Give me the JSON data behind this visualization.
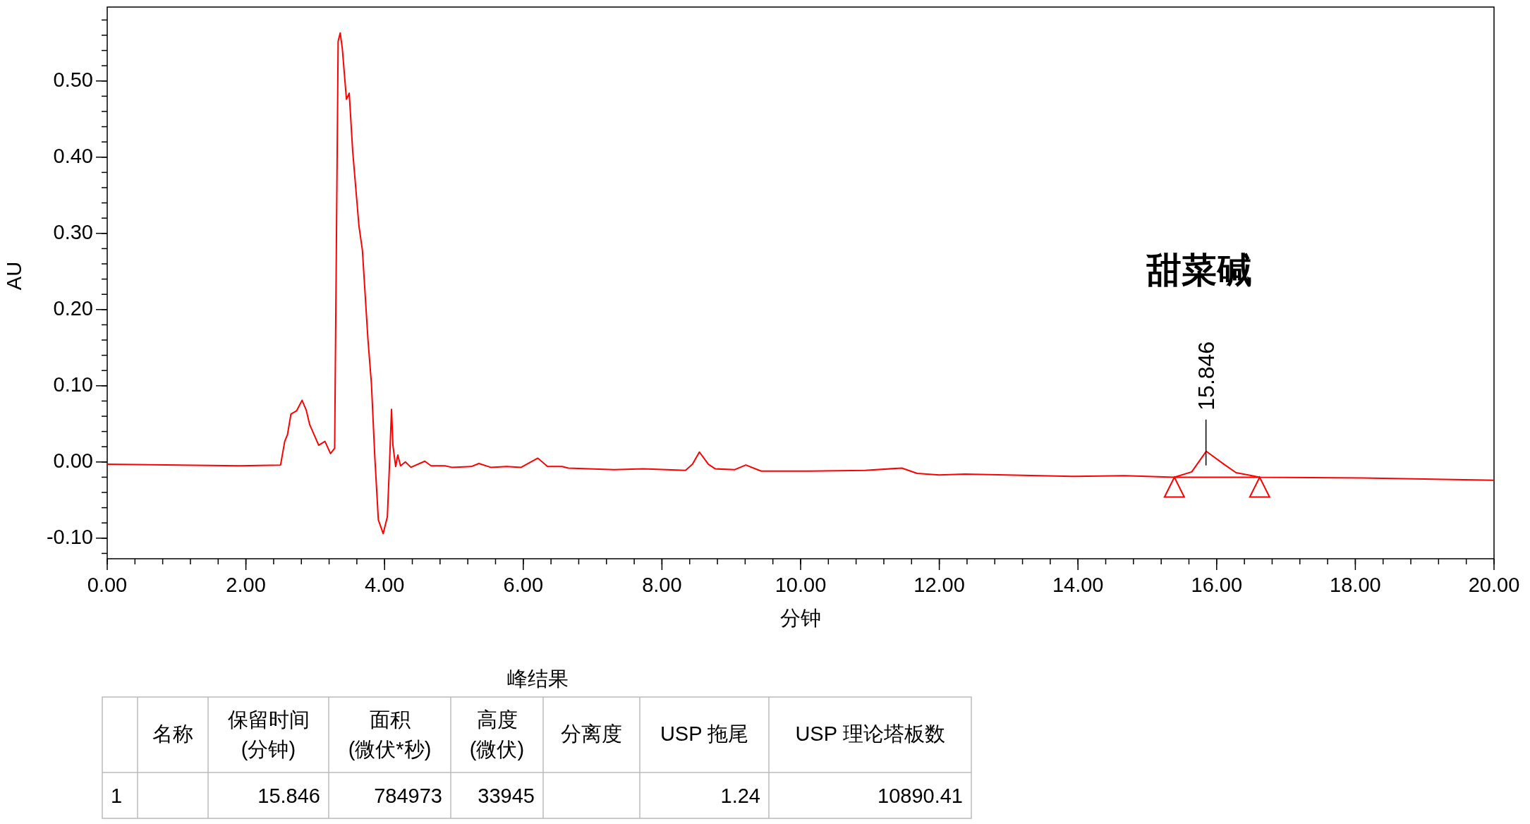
{
  "chart_data": {
    "type": "line",
    "xlabel": "分钟",
    "ylabel": "AU",
    "xlim": [
      0,
      20
    ],
    "ylim": [
      -0.127,
      0.597
    ],
    "xticks": [
      {
        "value": 0,
        "label": "0.00"
      },
      {
        "value": 2,
        "label": "2.00"
      },
      {
        "value": 4,
        "label": "4.00"
      },
      {
        "value": 6,
        "label": "6.00"
      },
      {
        "value": 8,
        "label": "8.00"
      },
      {
        "value": 10,
        "label": "10.00"
      },
      {
        "value": 12,
        "label": "12.00"
      },
      {
        "value": 14,
        "label": "14.00"
      },
      {
        "value": 16,
        "label": "16.00"
      },
      {
        "value": 18,
        "label": "18.00"
      },
      {
        "value": 20,
        "label": "20.00"
      }
    ],
    "yticks": [
      {
        "value": -0.1,
        "label": "-0.10"
      },
      {
        "value": 0,
        "label": "0.00"
      },
      {
        "value": 0.1,
        "label": "0.10"
      },
      {
        "value": 0.2,
        "label": "0.20"
      },
      {
        "value": 0.3,
        "label": "0.30"
      },
      {
        "value": 0.4,
        "label": "0.40"
      },
      {
        "value": 0.5,
        "label": "0.50"
      }
    ],
    "grid": false,
    "marker": "none",
    "line_style": "solid",
    "series": [
      {
        "type": "line",
        "color": "#ff0000",
        "x": [
          0,
          1.91,
          2.5,
          2.56,
          2.6,
          2.65,
          2.73,
          2.81,
          2.87,
          2.92,
          3.05,
          3.14,
          3.22,
          3.28,
          3.33,
          3.36,
          3.39,
          3.45,
          3.49,
          3.54,
          3.63,
          3.68,
          3.76,
          3.81,
          3.86,
          3.91,
          3.98,
          4.04,
          4.07,
          4.1,
          4.12,
          4.16,
          4.19,
          4.23,
          4.3,
          4.38,
          4.58,
          4.67,
          4.87,
          4.97,
          5.25,
          5.36,
          5.53,
          5.76,
          5.97,
          6.21,
          6.35,
          6.56,
          6.65,
          7.31,
          7.73,
          8.34,
          8.44,
          8.54,
          8.67,
          8.77,
          9.05,
          9.21,
          9.43,
          10.13,
          10.93,
          11.46,
          11.68,
          12.0,
          12.37,
          13.92,
          14.67,
          15.39,
          15.64,
          15.85,
          16.12,
          16.28,
          16.62,
          18.1,
          20.0
        ],
        "values": [
          -0.003,
          -0.005,
          -0.004,
          0.027,
          0.036,
          0.063,
          0.067,
          0.081,
          0.068,
          0.049,
          0.022,
          0.027,
          0.011,
          0.018,
          0.552,
          0.563,
          0.543,
          0.476,
          0.484,
          0.408,
          0.31,
          0.278,
          0.161,
          0.103,
          0.005,
          -0.076,
          -0.094,
          -0.072,
          -0.005,
          0.069,
          0.022,
          -0.006,
          0.009,
          -0.005,
          0.0,
          -0.007,
          0.001,
          -0.005,
          -0.005,
          -0.007,
          -0.006,
          -0.002,
          -0.007,
          -0.006,
          -0.007,
          0.005,
          -0.006,
          -0.006,
          -0.008,
          -0.01,
          -0.009,
          -0.011,
          -0.003,
          0.013,
          -0.003,
          -0.009,
          -0.01,
          -0.004,
          -0.012,
          -0.012,
          -0.011,
          -0.008,
          -0.015,
          -0.017,
          -0.016,
          -0.019,
          -0.018,
          -0.02,
          -0.013,
          0.014,
          -0.004,
          -0.014,
          -0.02,
          -0.021,
          -0.024
        ]
      },
      {
        "type": "line",
        "color": "#ff0000",
        "x": [
          15.39,
          16.62
        ],
        "values": [
          -0.02,
          -0.02
        ]
      },
      {
        "type": "scatter",
        "color": "#ff0000",
        "marker": "triangle",
        "x": [
          15.39,
          16.62
        ],
        "values": [
          -0.033,
          -0.033
        ]
      }
    ],
    "annotations": [
      {
        "text": "15.846",
        "x": 15.846,
        "y": 0.014
      },
      "甜菜碱",
      "峰结果",
      null,
      "名称",
      "保留时间\n(分钟)",
      "面积\n(微伏*秒)",
      "高度\n(微伏)",
      "分离度",
      "USP 拖尾",
      "USP 理论塔板数",
      "1",
      null,
      "15.846",
      "784973",
      "33945",
      null,
      "1.24",
      "10890.41"
    ]
  }
}
